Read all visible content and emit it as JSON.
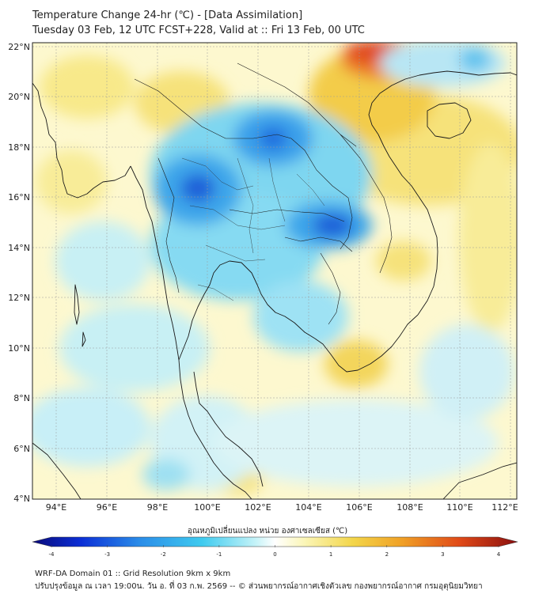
{
  "header": {
    "title_line1": "Temperature Change 24-hr (℃) - [Data Assimilation]",
    "title_line2": "Tuesday 03 Feb, 12 UTC FCST+228, Valid at :: Fri 13 Feb, 00 UTC"
  },
  "map": {
    "lon_labels": [
      "94°E",
      "96°E",
      "98°E",
      "100°E",
      "102°E",
      "104°E",
      "106°E",
      "108°E",
      "110°E",
      "112°E"
    ],
    "lat_labels": [
      "22°N",
      "20°N",
      "18°N",
      "16°N",
      "14°N",
      "12°N",
      "10°N",
      "8°N",
      "6°N",
      "4°N"
    ],
    "lon_values": [
      94,
      96,
      98,
      100,
      102,
      104,
      106,
      108,
      110,
      112
    ],
    "lat_values": [
      22,
      20,
      18,
      16,
      14,
      12,
      10,
      8,
      6,
      4
    ],
    "lon_range": [
      93,
      112.5
    ],
    "lat_range": [
      4,
      22.3
    ],
    "background_color": "#fdf8cf",
    "coast_color": "#1a1a1a"
  },
  "colorbar": {
    "label": "อุณหภูมิเปลี่ยนแปลง หน่วย องศาเซลเซียส (℃)",
    "ticks": [
      "-4",
      "-3",
      "-2",
      "-1",
      "0",
      "1",
      "2",
      "3",
      "4"
    ],
    "range": [
      -4,
      4
    ],
    "stops": [
      "#0a0a7a",
      "#0b2fd6",
      "#2a8ce8",
      "#3fcbef",
      "#c5f3f8",
      "#ffffff",
      "#fbf6b8",
      "#f3d64a",
      "#f0a126",
      "#e04a18",
      "#8a0e0e"
    ]
  },
  "footer": {
    "line1": "WRF-DA Domain 01 :: Grid Resolution 9km x 9km",
    "line2": "ปรับปรุงข้อมูล ณ เวลา 19:00น. วัน อ. ที่ 03 ก.พ. 2569 -- © ส่วนพยากรณ์อากาศเชิงตัวเลข กองพยากรณ์อากาศ กรมอุตุนิยมวิทยา"
  }
}
